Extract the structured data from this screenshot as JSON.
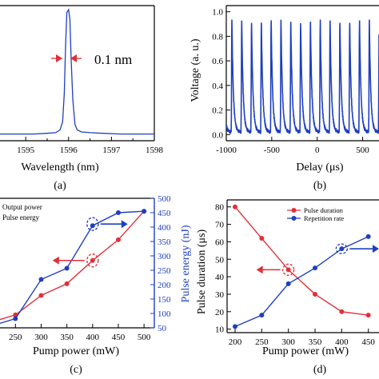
{
  "chart_data": [
    {
      "panel": "(a)",
      "type": "line",
      "xlabel": "Wavelength (nm)",
      "ylabel": "",
      "xlim": [
        1594.4,
        1598
      ],
      "ylim": [
        0,
        1
      ],
      "xticks": [
        1595,
        1596,
        1597,
        1598
      ],
      "annotation": "0.1 nm",
      "color": "#1f3fbf",
      "x": [
        1594.4,
        1594.8,
        1595.2,
        1595.5,
        1595.7,
        1595.8,
        1595.86,
        1595.9,
        1595.93,
        1595.96,
        1596.0,
        1596.03,
        1596.06,
        1596.1,
        1596.15,
        1596.2,
        1596.3,
        1596.5,
        1596.8,
        1597.2,
        1597.6,
        1598.0
      ],
      "y": [
        0.05,
        0.05,
        0.05,
        0.055,
        0.06,
        0.08,
        0.14,
        0.35,
        0.7,
        0.95,
        0.97,
        0.9,
        0.6,
        0.3,
        0.12,
        0.08,
        0.065,
        0.06,
        0.055,
        0.05,
        0.05,
        0.05
      ]
    },
    {
      "panel": "(b)",
      "type": "line",
      "xlabel": "Delay (μs)",
      "ylabel": "Voltage (a. u.)",
      "xlim": [
        -1000,
        680
      ],
      "ylim": [
        -0.05,
        1.05
      ],
      "xticks": [
        -1000,
        -500,
        0,
        500
      ],
      "yticks": [
        "0.0",
        "0.2",
        "0.4",
        "0.6",
        "0.8",
        "1.0"
      ],
      "color": "#1f3fbf",
      "pulse_period_us": 108,
      "first_pulse_us": -945
    },
    {
      "panel": "(c)",
      "type": "line",
      "xlabel": "Pump power (mW)",
      "ylabel_right": "Pulse energy (nJ)",
      "xlim": [
        220,
        520
      ],
      "xticks": [
        250,
        300,
        350,
        400,
        450,
        500
      ],
      "ylim_right": [
        50,
        500
      ],
      "yticks_right": [
        50,
        100,
        150,
        200,
        250,
        300,
        350,
        400,
        450,
        500
      ],
      "ylim_left": [
        0,
        1
      ],
      "series": [
        {
          "name": "Output power",
          "color": "#e0303a",
          "axis": "left",
          "x": [
            200,
            250,
            300,
            350,
            400,
            450,
            500
          ],
          "y": [
            0.04,
            0.1,
            0.25,
            0.34,
            0.52,
            0.68,
            0.9
          ]
        },
        {
          "name": "Pulse energy",
          "color": "#1f3fbf",
          "axis": "right",
          "x": [
            200,
            250,
            300,
            350,
            400,
            450,
            500
          ],
          "y": [
            55,
            82,
            218,
            257,
            405,
            450,
            455
          ]
        }
      ]
    },
    {
      "panel": "(d)",
      "type": "line",
      "xlabel": "Pump power (mW)",
      "ylabel": "Pulse duration (μs)",
      "xlim": [
        185,
        470
      ],
      "xticks": [
        200,
        250,
        300,
        350,
        400,
        450
      ],
      "ylim": [
        8,
        84
      ],
      "yticks": [
        10,
        20,
        30,
        40,
        50,
        60,
        70,
        80
      ],
      "series": [
        {
          "name": "Pulse duration",
          "color": "#e0303a",
          "x": [
            200,
            250,
            300,
            350,
            400,
            450
          ],
          "y": [
            80,
            62,
            44,
            30,
            20,
            18
          ]
        },
        {
          "name": "Repetition rate",
          "color": "#1f3fbf",
          "x": [
            200,
            250,
            300,
            350,
            400,
            450
          ],
          "y": [
            11.5,
            18,
            36,
            45,
            56,
            63
          ]
        }
      ]
    }
  ],
  "labels": {
    "panel_a": "(a)",
    "panel_b": "(b)",
    "panel_c": "(c)",
    "panel_d": "(d)",
    "a_annot": "0.1 nm",
    "c_legend_1": "Output power",
    "c_legend_2": "Pulse energy",
    "d_legend_1": "Pulse duration",
    "d_legend_2": "Repetition rate"
  }
}
